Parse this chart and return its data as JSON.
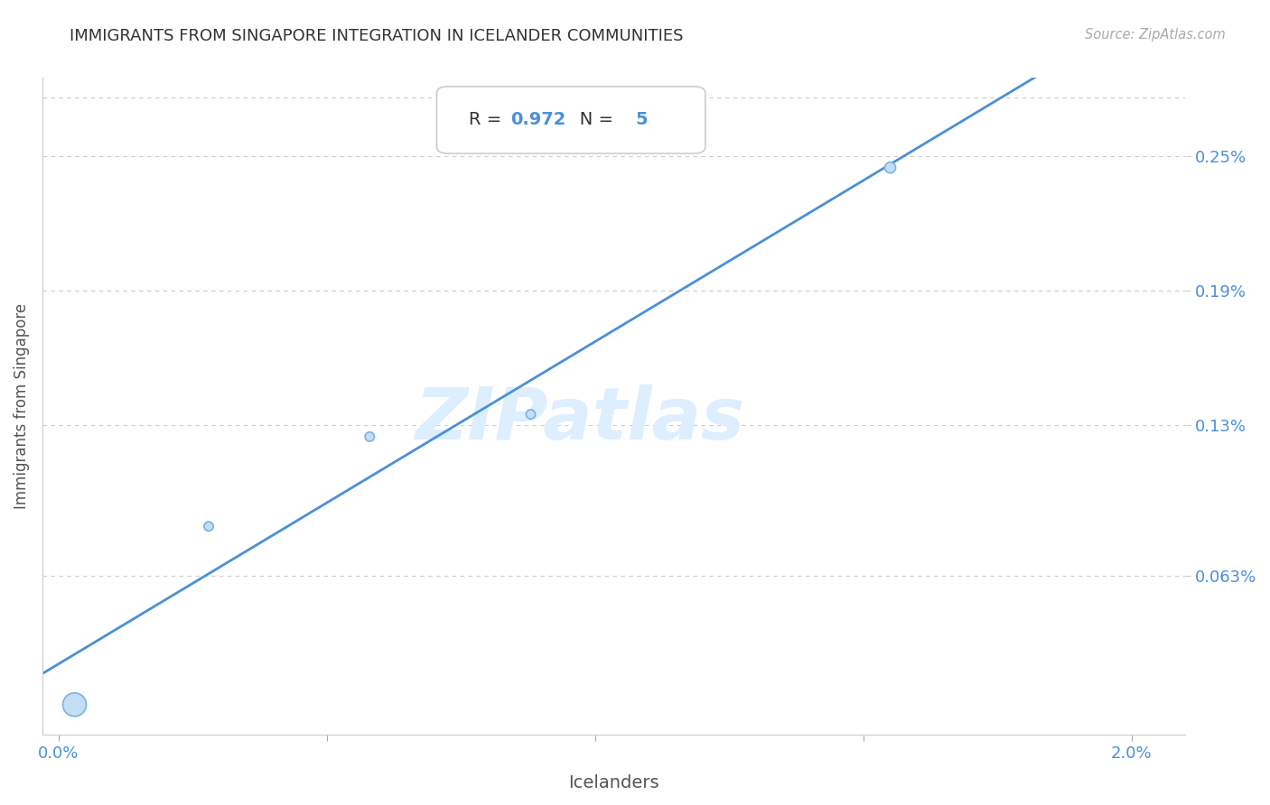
{
  "title": "IMMIGRANTS FROM SINGAPORE INTEGRATION IN ICELANDER COMMUNITIES",
  "source": "Source: ZipAtlas.com",
  "xlabel": "Icelanders",
  "ylabel": "Immigrants from Singapore",
  "x_min": 0.0,
  "x_max": 0.02,
  "y_min": 0.0,
  "y_max": 0.00285,
  "r_value": "0.972",
  "n_value": "5",
  "scatter_x": [
    0.0003,
    0.0028,
    0.0058,
    0.0088,
    0.0155
  ],
  "scatter_y": [
    5.5e-05,
    0.00085,
    0.00125,
    0.00135,
    0.00245
  ],
  "scatter_sizes": [
    350,
    55,
    55,
    55,
    75
  ],
  "scatter_color": "#c5ddf5",
  "scatter_edge_color": "#7ab3e0",
  "line_color": "#4a90d9",
  "line_width": 2.0,
  "grid_color": "#cccccc",
  "ytick_labels": [
    "0.063%",
    "0.13%",
    "0.19%",
    "0.25%"
  ],
  "ytick_values": [
    0.00063,
    0.0013,
    0.0019,
    0.0025
  ],
  "xtick_positions": [
    0.0,
    0.005,
    0.01,
    0.015,
    0.02
  ],
  "xtick_labels": [
    "0.0%",
    "",
    "",
    "",
    "2.0%"
  ],
  "title_color": "#333333",
  "source_color": "#aaaaaa",
  "axis_label_color": "#555555",
  "tick_label_color": "#4a90d9",
  "watermark_color": "#ddeeff",
  "background_color": "#ffffff",
  "box_edge_color": "#cccccc",
  "box_face_color": "#ffffff",
  "dark_text_color": "#333333",
  "blue_text_color": "#4a90d9"
}
